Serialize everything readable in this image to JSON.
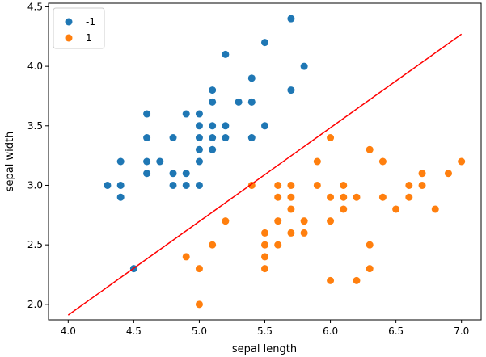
{
  "chart_data": {
    "type": "scatter",
    "title": "",
    "xlabel": "sepal length",
    "ylabel": "sepal width",
    "xlim": [
      3.85,
      7.15
    ],
    "ylim": [
      1.87,
      4.53
    ],
    "xticks": [
      4.0,
      4.5,
      5.0,
      5.5,
      6.0,
      6.5,
      7.0
    ],
    "xtick_labels": [
      "4.0",
      "4.5",
      "5.0",
      "5.5",
      "6.0",
      "6.5",
      "7.0"
    ],
    "yticks": [
      2.0,
      2.5,
      3.0,
      3.5,
      4.0,
      4.5
    ],
    "ytick_labels": [
      "2.0",
      "2.5",
      "3.0",
      "3.5",
      "4.0",
      "4.5"
    ],
    "grid": false,
    "legend": {
      "position": "top-left"
    },
    "series": [
      {
        "name": "-1",
        "color": "#1f77b4",
        "points": [
          [
            4.3,
            3.0
          ],
          [
            4.4,
            2.9
          ],
          [
            4.4,
            3.0
          ],
          [
            4.4,
            3.2
          ],
          [
            4.5,
            2.3
          ],
          [
            4.6,
            3.1
          ],
          [
            4.6,
            3.2
          ],
          [
            4.6,
            3.4
          ],
          [
            4.6,
            3.6
          ],
          [
            4.7,
            3.2
          ],
          [
            4.8,
            3.0
          ],
          [
            4.8,
            3.1
          ],
          [
            4.8,
            3.4
          ],
          [
            4.9,
            3.0
          ],
          [
            4.9,
            3.1
          ],
          [
            4.9,
            3.6
          ],
          [
            5.0,
            3.0
          ],
          [
            5.0,
            3.2
          ],
          [
            5.0,
            3.3
          ],
          [
            5.0,
            3.4
          ],
          [
            5.0,
            3.5
          ],
          [
            5.0,
            3.6
          ],
          [
            5.1,
            3.3
          ],
          [
            5.1,
            3.4
          ],
          [
            5.1,
            3.5
          ],
          [
            5.1,
            3.7
          ],
          [
            5.1,
            3.8
          ],
          [
            5.2,
            3.4
          ],
          [
            5.2,
            3.5
          ],
          [
            5.2,
            4.1
          ],
          [
            5.3,
            3.7
          ],
          [
            5.4,
            3.4
          ],
          [
            5.4,
            3.7
          ],
          [
            5.4,
            3.9
          ],
          [
            5.5,
            3.5
          ],
          [
            5.5,
            4.2
          ],
          [
            5.7,
            3.8
          ],
          [
            5.7,
            4.4
          ],
          [
            5.8,
            4.0
          ]
        ]
      },
      {
        "name": "1",
        "color": "#ff7f0e",
        "points": [
          [
            4.9,
            2.4
          ],
          [
            5.0,
            2.0
          ],
          [
            5.0,
            2.3
          ],
          [
            5.1,
            2.5
          ],
          [
            5.2,
            2.7
          ],
          [
            5.4,
            3.0
          ],
          [
            5.5,
            2.3
          ],
          [
            5.5,
            2.4
          ],
          [
            5.5,
            2.5
          ],
          [
            5.5,
            2.6
          ],
          [
            5.6,
            2.5
          ],
          [
            5.6,
            2.7
          ],
          [
            5.6,
            2.9
          ],
          [
            5.6,
            3.0
          ],
          [
            5.7,
            2.6
          ],
          [
            5.7,
            2.8
          ],
          [
            5.7,
            2.9
          ],
          [
            5.7,
            3.0
          ],
          [
            5.8,
            2.6
          ],
          [
            5.8,
            2.7
          ],
          [
            5.9,
            3.0
          ],
          [
            5.9,
            3.2
          ],
          [
            6.0,
            2.2
          ],
          [
            6.0,
            2.7
          ],
          [
            6.0,
            2.9
          ],
          [
            6.0,
            3.4
          ],
          [
            6.1,
            2.8
          ],
          [
            6.1,
            2.9
          ],
          [
            6.1,
            3.0
          ],
          [
            6.2,
            2.2
          ],
          [
            6.2,
            2.9
          ],
          [
            6.3,
            2.3
          ],
          [
            6.3,
            2.5
          ],
          [
            6.3,
            3.3
          ],
          [
            6.4,
            2.9
          ],
          [
            6.4,
            3.2
          ],
          [
            6.5,
            2.8
          ],
          [
            6.6,
            2.9
          ],
          [
            6.6,
            3.0
          ],
          [
            6.7,
            3.0
          ],
          [
            6.7,
            3.1
          ],
          [
            6.8,
            2.8
          ],
          [
            6.9,
            3.1
          ],
          [
            7.0,
            3.2
          ]
        ]
      }
    ],
    "line": {
      "name": "decision-boundary",
      "color": "#ff0000",
      "x": [
        4.0,
        7.0
      ],
      "y": [
        1.91,
        4.27
      ]
    }
  }
}
